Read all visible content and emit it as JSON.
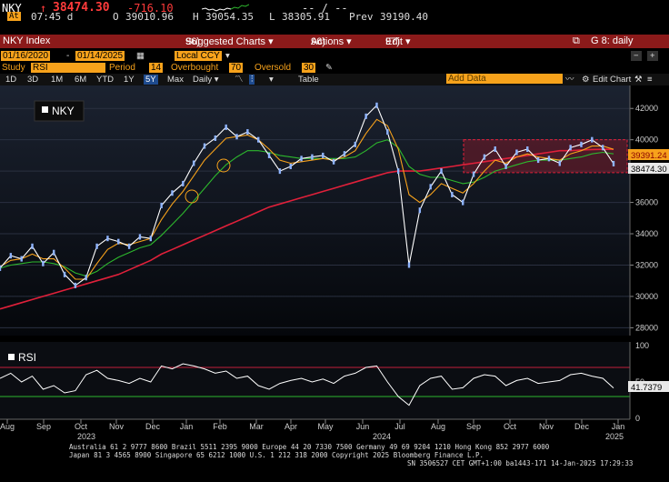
{
  "ticker": {
    "symbol": "NKY",
    "arrow": "↑",
    "last": "38474.30",
    "change": "-716.10",
    "dashes": "-- / --",
    "badge": "At",
    "time": "07:45 d",
    "open_label": "O",
    "open": "39010.96",
    "high_label": "H",
    "high": "39054.35",
    "low_label": "L",
    "low": "38305.91",
    "prev_label": "Prev",
    "prev": "39190.40"
  },
  "titlebar": {
    "security": "NKY Index",
    "menus": [
      {
        "num": "96)",
        "label": "Suggested Charts ▾"
      },
      {
        "num": "96)",
        "label": "Actions ▾"
      },
      {
        "num": "97)",
        "label": "Edit ▾"
      }
    ],
    "right": "G 8: daily"
  },
  "range": {
    "start": "01/16/2020",
    "end": "01/14/2025",
    "currency": "Local CCY"
  },
  "study": {
    "label": "Study",
    "name": "RSI",
    "period_label": "Period",
    "period": "14",
    "overbought_label": "Overbought",
    "overbought": "70",
    "oversold_label": "Oversold",
    "oversold": "30"
  },
  "toolbar": {
    "periods": [
      "1D",
      "3D",
      "1M",
      "6M",
      "YTD",
      "1Y",
      "5Y",
      "Max"
    ],
    "selected_period": "5Y",
    "frequency": "Daily ▾",
    "table": "Table",
    "add_data_placeholder": "Add Data",
    "edit_chart": "Edit Chart"
  },
  "chart_data": [
    {
      "type": "line",
      "legend": "NKY",
      "y_ticks": [
        28000,
        30000,
        32000,
        34000,
        36000,
        38000,
        40000,
        42000
      ],
      "ylim": [
        27500,
        43000
      ],
      "x_ticks": [
        "Aug",
        "Sep",
        "Oct",
        "Nov",
        "Dec",
        "Jan",
        "Feb",
        "Mar",
        "Apr",
        "May",
        "Jun",
        "Jul",
        "Aug",
        "Sep",
        "Oct",
        "Nov",
        "Dec",
        "Jan"
      ],
      "x_year_labels": [
        "2023",
        "2024",
        "2025"
      ],
      "last_price_label": "38474.30",
      "ma_label": "39391.24",
      "series": [
        {
          "color": "#ffffff",
          "values": [
            31800,
            32600,
            32400,
            33200,
            32100,
            32800,
            31400,
            30700,
            31200,
            33200,
            33700,
            33500,
            33200,
            33800,
            33700,
            35800,
            36600,
            37200,
            38500,
            39600,
            40100,
            40800,
            40200,
            40500,
            40000,
            39000,
            38000,
            38300,
            38800,
            38900,
            39000,
            38600,
            39100,
            39700,
            41500,
            42200,
            40500,
            38000,
            32000,
            35500,
            37000,
            38000,
            36500,
            36000,
            37800,
            38900,
            39400,
            38300,
            39200,
            39400,
            38700,
            38800,
            38500,
            39500,
            39700,
            40000,
            39500,
            38474
          ]
        },
        {
          "color": "#f7a21b",
          "values": [
            31900,
            32300,
            32400,
            32700,
            32400,
            32400,
            31800,
            31100,
            31100,
            32100,
            33000,
            33400,
            33300,
            33500,
            33700,
            34900,
            35900,
            36700,
            37700,
            38700,
            39400,
            40100,
            40200,
            40300,
            40000,
            39400,
            38700,
            38500,
            38600,
            38700,
            38800,
            38700,
            38900,
            39300,
            40400,
            41300,
            40900,
            39400,
            36500,
            36000,
            36500,
            37200,
            36900,
            36600,
            37200,
            38000,
            38700,
            38500,
            38900,
            39100,
            38900,
            38800,
            38700,
            39100,
            39300,
            39600,
            39600,
            39391
          ]
        },
        {
          "color": "#2db82d",
          "values": [
            31800,
            32000,
            32100,
            32200,
            32200,
            32100,
            31900,
            31500,
            31300,
            31600,
            32100,
            32500,
            32800,
            33100,
            33300,
            33900,
            34600,
            35300,
            36100,
            36900,
            37700,
            38400,
            38900,
            39300,
            39300,
            39200,
            39000,
            38900,
            38800,
            38800,
            38800,
            38800,
            38800,
            38900,
            39300,
            39800,
            40000,
            39500,
            38300,
            37800,
            37600,
            37600,
            37400,
            37200,
            37300,
            37600,
            38000,
            38200,
            38400,
            38600,
            38700,
            38700,
            38700,
            38800,
            38900,
            39100,
            39200,
            39100
          ]
        },
        {
          "color": "#e0203a",
          "values": [
            29200,
            29400,
            29600,
            29800,
            30000,
            30200,
            30400,
            30600,
            30800,
            31000,
            31200,
            31400,
            31700,
            32000,
            32300,
            32700,
            33000,
            33300,
            33600,
            33900,
            34200,
            34500,
            34800,
            35100,
            35400,
            35700,
            35900,
            36100,
            36300,
            36500,
            36700,
            36900,
            37100,
            37300,
            37500,
            37700,
            37900,
            38000,
            38000,
            38000,
            38100,
            38200,
            38300,
            38400,
            38500,
            38600,
            38700,
            38800,
            38900,
            39000,
            39100,
            39200,
            39300,
            39300,
            39350,
            39380,
            39390,
            39391
          ]
        }
      ]
    },
    {
      "type": "line",
      "legend": "RSI",
      "y_ticks": [
        0,
        50,
        100
      ],
      "ylim": [
        0,
        100
      ],
      "overbought": 70,
      "oversold": 30,
      "last_value_label": "41.7379",
      "series": [
        {
          "color": "#ffffff",
          "values": [
            55,
            62,
            50,
            58,
            40,
            45,
            35,
            38,
            60,
            66,
            55,
            52,
            48,
            55,
            50,
            72,
            68,
            75,
            72,
            68,
            62,
            65,
            55,
            58,
            45,
            40,
            48,
            52,
            55,
            50,
            54,
            48,
            58,
            62,
            70,
            72,
            50,
            30,
            18,
            45,
            55,
            58,
            40,
            42,
            55,
            60,
            58,
            45,
            52,
            55,
            48,
            50,
            52,
            60,
            62,
            58,
            55,
            41.7379
          ]
        }
      ]
    }
  ]
}
